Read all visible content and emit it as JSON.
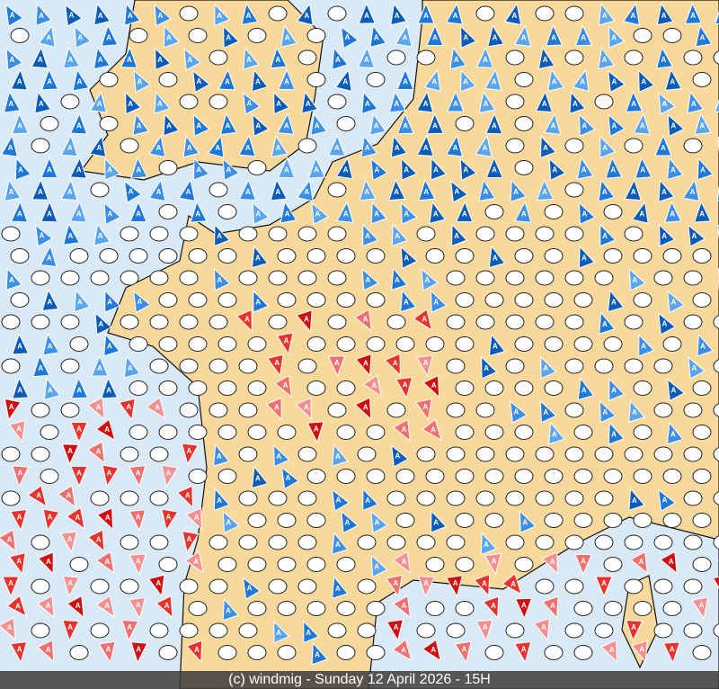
{
  "footer": "(c) windmig - Sunday 12 April 2026 - 15H",
  "symbol_letter": "A"
}
